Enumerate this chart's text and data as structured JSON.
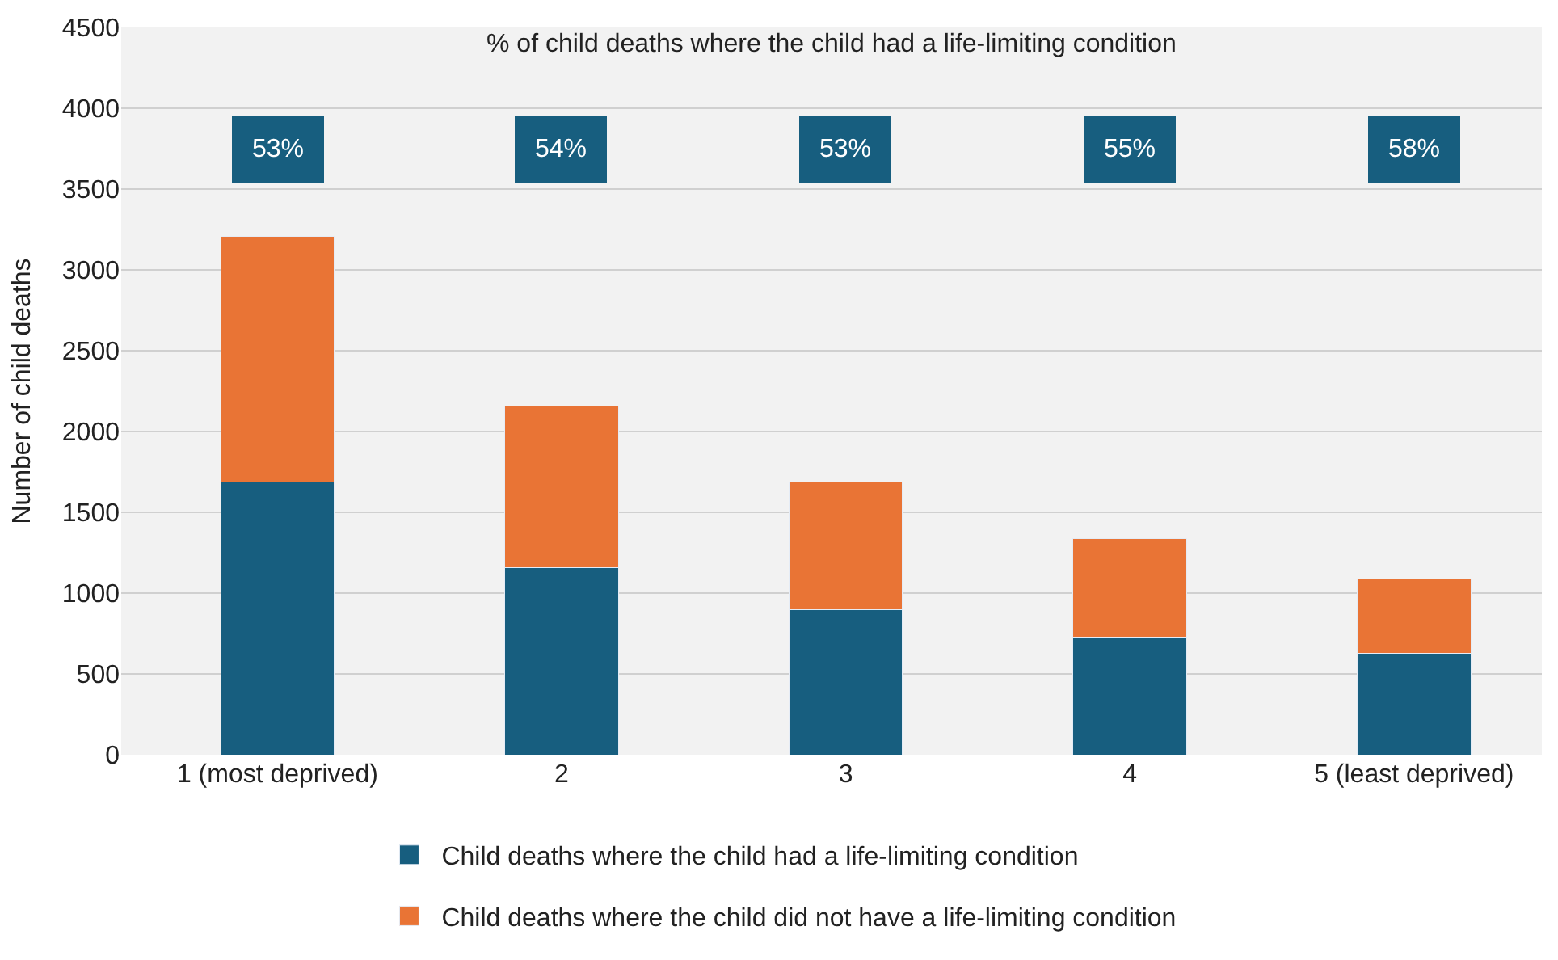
{
  "chart_data": {
    "type": "bar",
    "stacked": true,
    "ylabel": "Number of child deaths",
    "categories": [
      "1 (most deprived)",
      "2",
      "3",
      "4",
      "5 (least deprived)"
    ],
    "series": [
      {
        "name": "Child deaths where the child had a life-limiting condition",
        "color": "#175e7f",
        "values": [
          1690,
          1160,
          900,
          730,
          630
        ]
      },
      {
        "name": "Child deaths where the child did not have a life-limiting condition",
        "color": "#e97435",
        "values": [
          1520,
          1000,
          790,
          610,
          460
        ]
      }
    ],
    "ylim": [
      0,
      4500
    ],
    "yticks": [
      0,
      500,
      1000,
      1500,
      2000,
      2500,
      3000,
      3500,
      4000,
      4500
    ],
    "grid": "y",
    "legend": "bottom",
    "annotations": [
      "% of child deaths where the child had a life-limiting condition",
      "53%",
      "54%",
      "53%",
      "55%",
      "58%"
    ]
  }
}
